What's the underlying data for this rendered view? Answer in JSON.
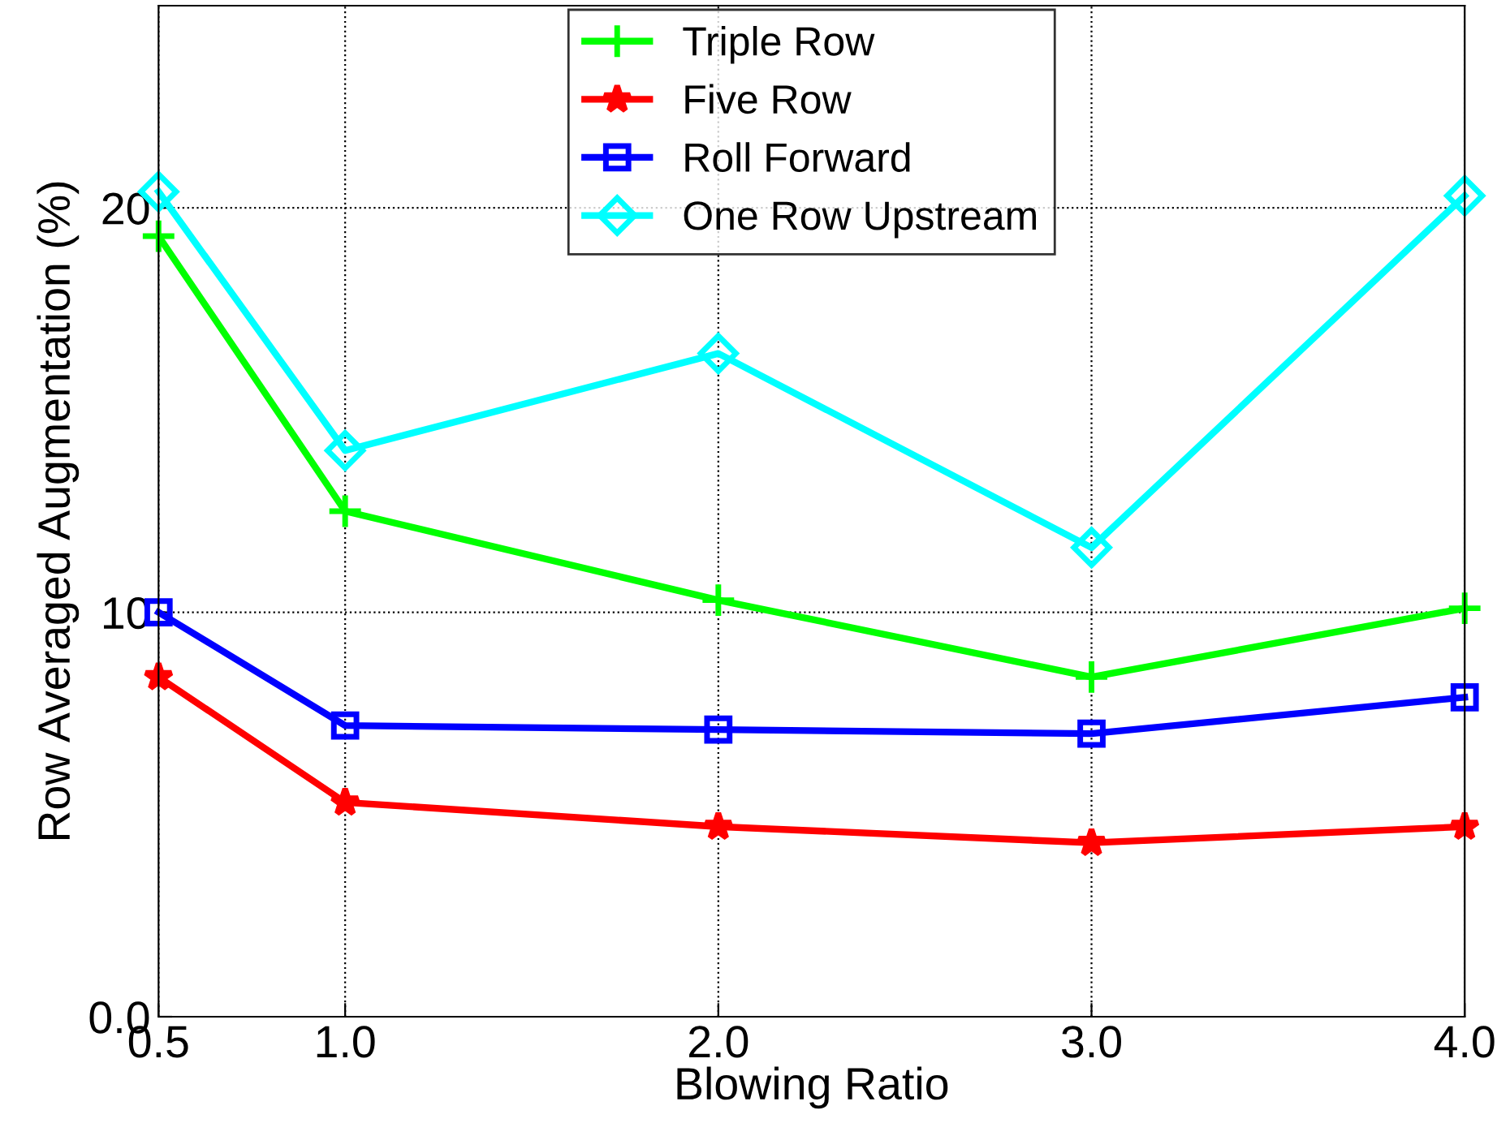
{
  "chart_data": {
    "type": "line",
    "xlabel": "Blowing Ratio",
    "ylabel": "Row Averaged Augmentation (%)",
    "x": [
      0.5,
      1.0,
      2.0,
      3.0,
      4.0
    ],
    "series": [
      {
        "name": "Triple Row",
        "color": "#00ff00",
        "marker": "cross",
        "values": [
          19.3,
          12.5,
          10.3,
          8.4,
          10.1
        ]
      },
      {
        "name": "Five Row",
        "color": "#ff0000",
        "marker": "star",
        "values": [
          8.4,
          5.3,
          4.7,
          4.3,
          4.7
        ]
      },
      {
        "name": "Roll Forward",
        "color": "#0000ff",
        "marker": "square",
        "values": [
          10.0,
          7.2,
          7.1,
          7.0,
          7.9
        ]
      },
      {
        "name": "One Row Upstream",
        "color": "#00ffff",
        "marker": "diamond",
        "values": [
          20.4,
          14.0,
          16.4,
          11.6,
          20.3
        ]
      }
    ],
    "xlim": [
      0.5,
      4.0
    ],
    "ylim": [
      0,
      25
    ],
    "xticks": [
      {
        "value": 0.5,
        "label": "0.5"
      },
      {
        "value": 1.0,
        "label": "1.0"
      },
      {
        "value": 2.0,
        "label": "2.0"
      },
      {
        "value": 3.0,
        "label": "3.0"
      },
      {
        "value": 4.0,
        "label": "4.0"
      }
    ],
    "yticks": [
      {
        "value": 0,
        "label": "0.0"
      },
      10,
      20
    ],
    "grid": true,
    "line_style": "solid",
    "legend": "top"
  }
}
